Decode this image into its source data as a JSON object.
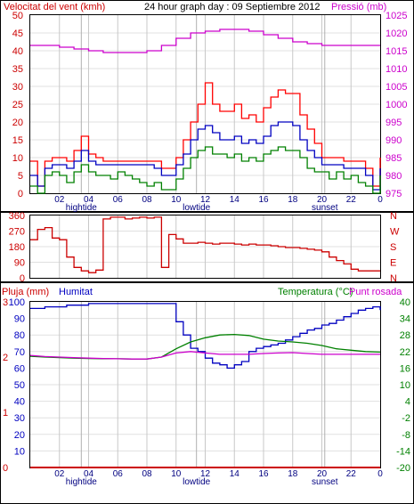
{
  "chart_data": [
    {
      "type": "line",
      "title": "24 hour graph day : 09 Septiembre 2012",
      "left_axis_label": "Velocitat del vent (kmh)",
      "right_axis_label": "Pressió (mb)",
      "left_ticks": [
        0,
        5,
        10,
        15,
        20,
        25,
        30,
        35,
        40,
        45,
        50
      ],
      "right_ticks": [
        975,
        980,
        985,
        990,
        995,
        1000,
        1005,
        1010,
        1015,
        1020,
        1025
      ],
      "x_hours": [
        "02",
        "04",
        "06",
        "08",
        "10",
        "12",
        "14",
        "16",
        "18",
        "20",
        "22",
        "0"
      ],
      "events": [
        {
          "label": "hightide",
          "hour": 3.5
        },
        {
          "label": "lowtide",
          "hour": 11.4
        },
        {
          "label": "sunset",
          "hour": 20.2
        }
      ],
      "colors": {
        "gust": "#ff0000",
        "avg": "#0000c0",
        "min": "#008000",
        "pressure": "#cc00cc"
      },
      "series": [
        {
          "key": "gust",
          "x": [
            0.0,
            0.5,
            1.0,
            1.5,
            2.0,
            2.5,
            3.0,
            3.5,
            4.0,
            4.5,
            5.0,
            5.5,
            6.0,
            6.5,
            7.0,
            7.5,
            8.0,
            8.5,
            9.0,
            9.5,
            10.0,
            10.5,
            11.0,
            11.5,
            12.0,
            12.5,
            13.0,
            13.5,
            14.0,
            14.5,
            15.0,
            15.5,
            16.0,
            16.5,
            17.0,
            17.5,
            18.0,
            18.5,
            19.0,
            19.5,
            20.0,
            20.5,
            21.0,
            21.5,
            22.0,
            22.5,
            23.0,
            23.5,
            24.0
          ],
          "values": [
            9,
            2,
            9,
            10,
            10,
            9,
            12,
            16,
            11,
            10,
            9,
            9,
            9,
            9,
            9,
            9,
            9,
            9,
            7,
            7,
            10,
            15,
            20,
            25,
            31,
            25,
            23,
            23,
            25,
            21,
            22,
            20,
            24,
            27,
            29,
            28,
            28,
            22,
            18,
            14,
            10,
            10,
            10,
            9,
            9,
            9,
            7,
            2,
            10
          ]
        },
        {
          "key": "avg",
          "x": [
            0.0,
            0.5,
            1.0,
            1.5,
            2.0,
            2.5,
            3.0,
            3.5,
            4.0,
            4.5,
            5.0,
            5.5,
            6.0,
            6.5,
            7.0,
            7.5,
            8.0,
            8.5,
            9.0,
            9.5,
            10.0,
            10.5,
            11.0,
            11.5,
            12.0,
            12.5,
            13.0,
            13.5,
            14.0,
            14.5,
            15.0,
            15.5,
            16.0,
            16.5,
            17.0,
            17.5,
            18.0,
            18.5,
            19.0,
            19.5,
            20.0,
            20.5,
            21.0,
            21.5,
            22.0,
            22.5,
            23.0,
            23.5,
            24.0
          ],
          "values": [
            5,
            2,
            7,
            8,
            8,
            7,
            9,
            12,
            9,
            8,
            8,
            8,
            8,
            8,
            8,
            8,
            8,
            7,
            5,
            5,
            8,
            11,
            15,
            18,
            19,
            17,
            15,
            15,
            16,
            14,
            15,
            14,
            16,
            19,
            20,
            20,
            19,
            15,
            12,
            10,
            8,
            8,
            8,
            7,
            7,
            7,
            5,
            1,
            7
          ]
        },
        {
          "key": "min",
          "x": [
            0.0,
            0.5,
            1.0,
            1.5,
            2.0,
            2.5,
            3.0,
            3.5,
            4.0,
            4.5,
            5.0,
            5.5,
            6.0,
            6.5,
            7.0,
            7.5,
            8.0,
            8.5,
            9.0,
            9.5,
            10.0,
            10.5,
            11.0,
            11.5,
            12.0,
            12.5,
            13.0,
            13.5,
            14.0,
            14.5,
            15.0,
            15.5,
            16.0,
            16.5,
            17.0,
            17.5,
            18.0,
            18.5,
            19.0,
            19.5,
            20.0,
            20.5,
            21.0,
            21.5,
            22.0,
            22.5,
            23.0,
            23.5,
            24.0
          ],
          "values": [
            2,
            0,
            5,
            6,
            5,
            3,
            6,
            8,
            6,
            5,
            5,
            4,
            6,
            5,
            4,
            3,
            2,
            3,
            1,
            1,
            4,
            7,
            10,
            12,
            13,
            11,
            11,
            10,
            11,
            9,
            10,
            9,
            11,
            12,
            13,
            12,
            12,
            10,
            7,
            6,
            6,
            4,
            6,
            4,
            5,
            3,
            2,
            0,
            5
          ]
        },
        {
          "key": "pressure",
          "axis": "right",
          "x": [
            0,
            1,
            2,
            3,
            4,
            5,
            6,
            7,
            8,
            9,
            10,
            11,
            12,
            13,
            14,
            15,
            16,
            17,
            18,
            19,
            20,
            21,
            22,
            23,
            24
          ],
          "values": [
            1016.5,
            1016.5,
            1016,
            1015.5,
            1015,
            1014.5,
            1014.5,
            1014.5,
            1015,
            1016.5,
            1018.5,
            1020,
            1020.5,
            1021,
            1021,
            1020.5,
            1019.5,
            1018.5,
            1017.5,
            1017,
            1016.5,
            1016.5,
            1016.5,
            1016.5,
            1016.5
          ]
        }
      ]
    },
    {
      "type": "line",
      "left_ticks": [
        0,
        90,
        180,
        270,
        360
      ],
      "compass": [
        "N",
        "W",
        "S",
        "E",
        "N"
      ],
      "color": "#cc0000",
      "series": [
        {
          "key": "direction",
          "x": [
            0.0,
            0.5,
            1.0,
            1.5,
            2.0,
            2.5,
            3.0,
            3.5,
            4.0,
            4.5,
            5.0,
            5.5,
            6.0,
            6.5,
            7.0,
            7.5,
            8.0,
            8.5,
            9.0,
            9.5,
            10.0,
            10.5,
            11.0,
            11.5,
            12.0,
            12.5,
            13.0,
            13.5,
            14.0,
            14.5,
            15.0,
            15.5,
            16.0,
            16.5,
            17.0,
            17.5,
            18.0,
            18.5,
            19.0,
            19.5,
            20.0,
            20.5,
            21.0,
            21.5,
            22.0,
            22.5,
            23.0,
            23.5,
            24.0
          ],
          "values": [
            220,
            280,
            290,
            230,
            220,
            120,
            60,
            40,
            30,
            45,
            340,
            350,
            350,
            340,
            345,
            350,
            345,
            350,
            60,
            250,
            225,
            200,
            200,
            205,
            200,
            195,
            200,
            200,
            195,
            190,
            195,
            190,
            190,
            185,
            180,
            175,
            175,
            170,
            165,
            160,
            150,
            120,
            100,
            80,
            50,
            40,
            40,
            40,
            40
          ]
        }
      ]
    },
    {
      "type": "line",
      "left_axis_label": "Pluja (mm)",
      "humidity_label": "Humitat",
      "temp_label": "Temperatura (°C)",
      "dew_label": "Punt rosada",
      "rain_ticks": [
        0,
        1,
        2,
        3
      ],
      "humidity_ticks": [
        10,
        20,
        30,
        40,
        50,
        60,
        70,
        80,
        90,
        100
      ],
      "temp_ticks": [
        -20,
        -14,
        -8,
        -2,
        4,
        10,
        16,
        22,
        28,
        34,
        40
      ],
      "x_hours": [
        "02",
        "04",
        "06",
        "08",
        "10",
        "12",
        "14",
        "16",
        "18",
        "20",
        "22",
        "0"
      ],
      "events": [
        {
          "label": "hightide",
          "hour": 3.5
        },
        {
          "label": "lowtide",
          "hour": 11.4
        },
        {
          "label": "sunset",
          "hour": 20.2
        }
      ],
      "colors": {
        "rain": "#cc0000",
        "humidity": "#0000c0",
        "temperature": "#008000",
        "dew": "#cc00cc"
      },
      "series": [
        {
          "key": "humidity",
          "x": [
            0.0,
            0.5,
            1.0,
            1.5,
            2.0,
            2.5,
            3.0,
            3.5,
            4.0,
            4.5,
            5.0,
            5.5,
            6.0,
            6.5,
            7.0,
            7.5,
            8.0,
            8.5,
            9.0,
            9.5,
            10.0,
            10.5,
            11.0,
            11.5,
            12.0,
            12.5,
            13.0,
            13.5,
            14.0,
            14.5,
            15.0,
            15.5,
            16.0,
            16.5,
            17.0,
            17.5,
            18.0,
            18.5,
            19.0,
            19.5,
            20.0,
            20.5,
            21.0,
            21.5,
            22.0,
            22.5,
            23.0,
            23.5,
            24.0
          ],
          "values": [
            96,
            96,
            97,
            97,
            97,
            98,
            98,
            98,
            99,
            99,
            99,
            99,
            99,
            99,
            99,
            99,
            99,
            99,
            99,
            99,
            88,
            80,
            72,
            70,
            66,
            63,
            62,
            60,
            62,
            64,
            70,
            72,
            73,
            74,
            75,
            77,
            79,
            81,
            83,
            84,
            86,
            87,
            89,
            91,
            93,
            95,
            96,
            97,
            95
          ]
        },
        {
          "key": "temperature",
          "x": [
            0,
            1,
            2,
            3,
            4,
            5,
            6,
            7,
            8,
            9,
            10,
            11,
            12,
            13,
            14,
            15,
            16,
            17,
            18,
            19,
            20,
            21,
            22,
            23,
            24
          ],
          "values": [
            20.3,
            20.0,
            19.8,
            19.6,
            19.5,
            19.4,
            19.4,
            19.3,
            19.3,
            20.0,
            23.0,
            25.5,
            27.0,
            28.0,
            28.2,
            27.8,
            26.5,
            25.8,
            25.5,
            25.0,
            24.2,
            23.0,
            22.5,
            22.0,
            21.8
          ]
        },
        {
          "key": "dew",
          "x": [
            0,
            1,
            2,
            3,
            4,
            5,
            6,
            7,
            8,
            9,
            10,
            11,
            12,
            13,
            14,
            15,
            16,
            17,
            18,
            19,
            20,
            21,
            22,
            23,
            24
          ],
          "values": [
            20.6,
            20.2,
            20.0,
            19.8,
            19.6,
            19.5,
            19.4,
            19.3,
            19.3,
            20.0,
            21.5,
            22.0,
            21.5,
            21.0,
            21.0,
            21.0,
            21.3,
            21.5,
            21.6,
            21.3,
            21.0,
            21.0,
            21.0,
            21.0,
            21.0
          ]
        },
        {
          "key": "rain",
          "x": [
            0,
            24
          ],
          "values": [
            0,
            0
          ]
        }
      ]
    }
  ]
}
